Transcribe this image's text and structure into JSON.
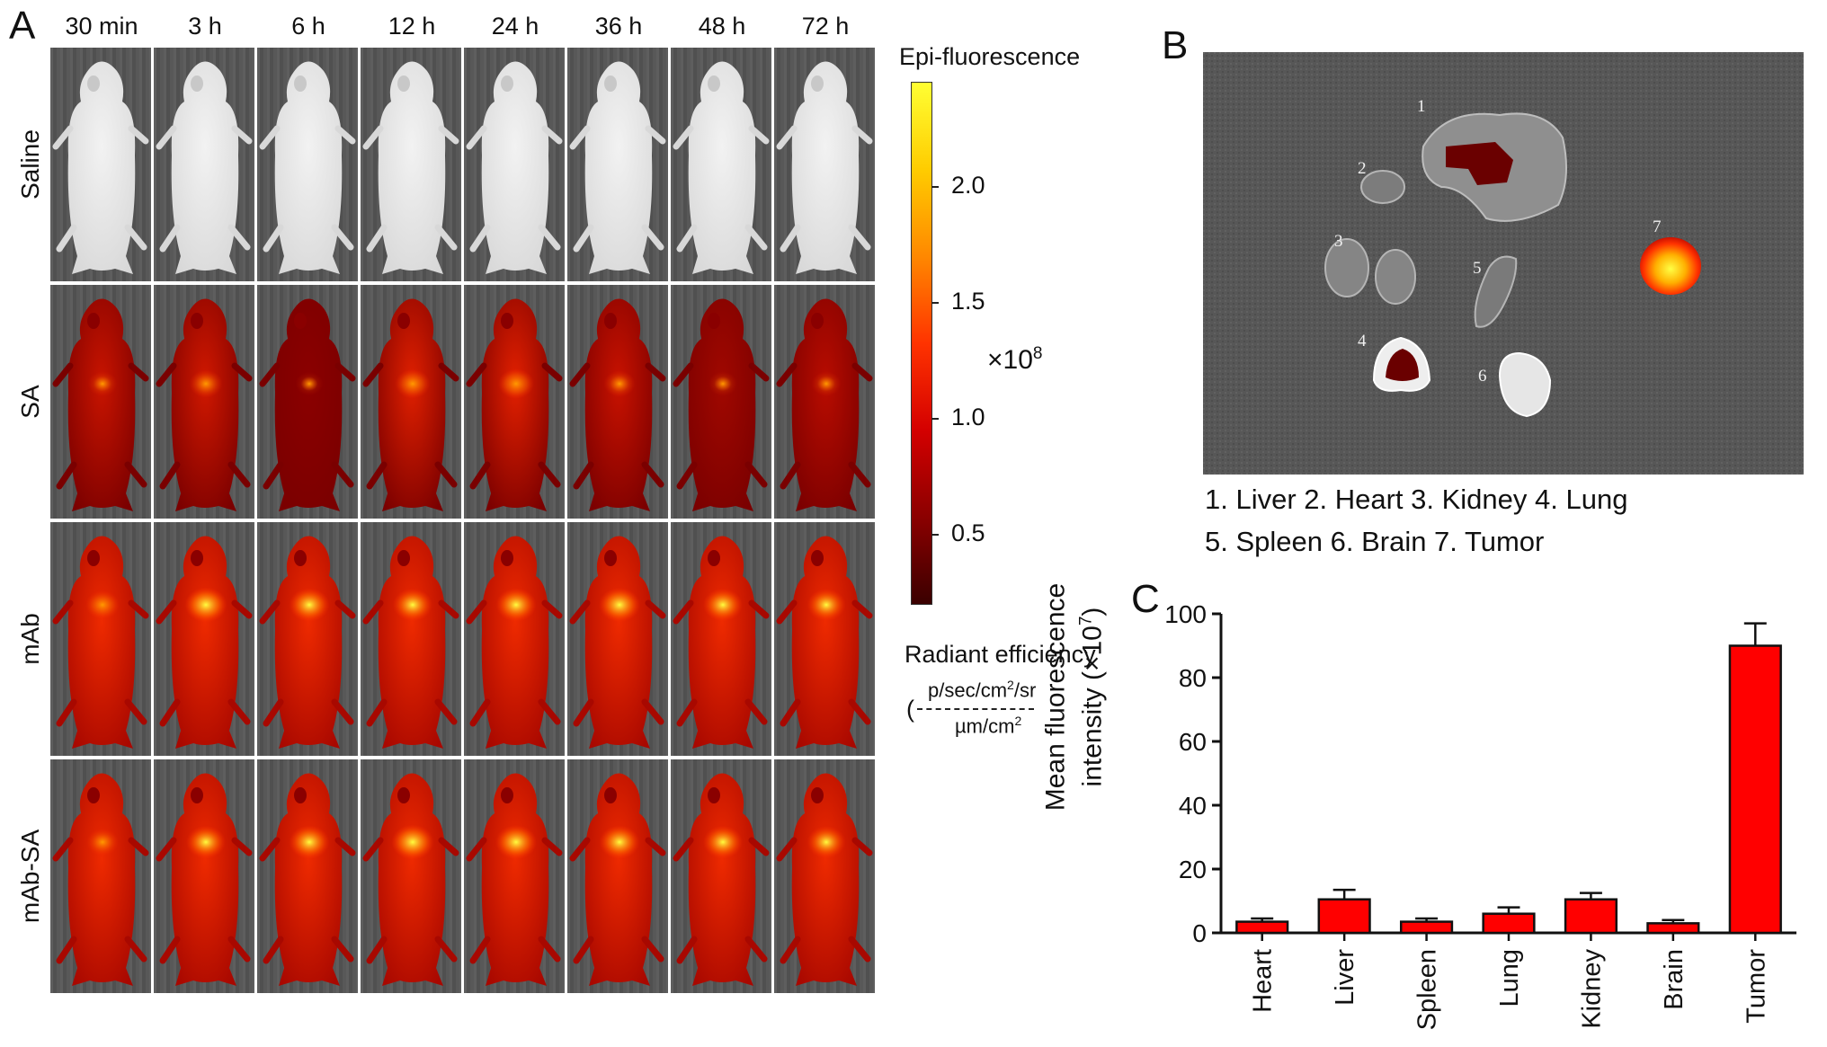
{
  "panels": {
    "a": "A",
    "b": "B",
    "c": "C"
  },
  "panel_a": {
    "timepoints": [
      "30 min",
      "3 h",
      "6 h",
      "12 h",
      "24 h",
      "36 h",
      "48 h",
      "72 h"
    ],
    "groups": [
      "Saline",
      "SA",
      "mAb",
      "mAb-SA"
    ],
    "colorbar": {
      "title": "Epi-fluorescence",
      "ticks": [
        "2.0",
        "1.5",
        "1.0",
        "0.5"
      ],
      "tick_values": [
        2.0,
        1.5,
        1.0,
        0.5
      ],
      "range": [
        0.2,
        2.45
      ],
      "multiplier": "×10",
      "exponent": "8",
      "unit_title": "Radiant efficiency",
      "unit_open": "(",
      "unit_num_a": "p/sec/cm",
      "unit_num_sup": "2",
      "unit_num_b": "/sr",
      "unit_den_a": "µm/cm",
      "unit_den_sup": "2",
      "colors": [
        "#3a0000",
        "#8b0000",
        "#d40000",
        "#ff3300",
        "#ff8800",
        "#ffcc00",
        "#ffff33"
      ]
    }
  },
  "panel_b": {
    "organ_numbers": [
      "1",
      "2",
      "3",
      "4",
      "5",
      "6",
      "7"
    ],
    "legend_line1": "1. Liver 2. Heart 3. Kidney 4. Lung",
    "legend_line2": "5. Spleen 6. Brain 7. Tumor"
  },
  "chart_data": {
    "type": "bar",
    "categories": [
      "Heart",
      "Liver",
      "Spleen",
      "Lung",
      "Kidney",
      "Brain",
      "Tumor"
    ],
    "values": [
      3.5,
      10.5,
      3.5,
      6,
      10.5,
      3,
      90
    ],
    "errors": [
      1,
      3,
      1,
      2,
      2,
      1,
      7
    ],
    "ylabel_line1": "Mean fluorescence",
    "ylabel_line2_a": "intensity (×10",
    "ylabel_line2_sup": "7",
    "ylabel_line2_b": ")",
    "yticks": [
      "0",
      "20",
      "40",
      "60",
      "80",
      "100"
    ],
    "ylim": [
      0,
      100
    ],
    "bar_color": "#ff0000",
    "grid": false,
    "legend": "none"
  }
}
